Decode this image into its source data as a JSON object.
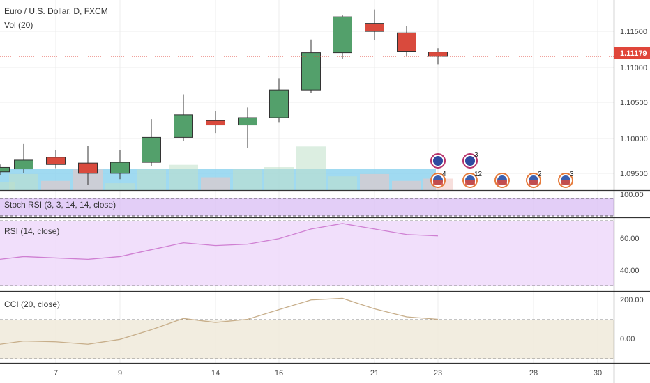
{
  "colors": {
    "up": "#53a06b",
    "down": "#d94a3d",
    "price_line": "#e0463a",
    "grid": "#ececec",
    "volume_bg": "#8fd3ee",
    "stoch_fill": "#dcc2f5",
    "rsi_fill": "#efdcfb",
    "rsi_line": "#cf7fd2",
    "cci_fill": "#f1ebdd",
    "cci_line": "#c7ae8a"
  },
  "header": {
    "symbol_line": "Euro / U.S. Dollar, D, FXCM",
    "volume_label": "Vol (20)"
  },
  "panes": {
    "stoch_label": "Stoch RSI (3, 3, 14, 14, close)",
    "rsi_label": "RSI (14, close)",
    "cci_label": "CCI (20, close)"
  },
  "price_axis": {
    "ticks": [
      "1.11500",
      "1.11000",
      "1.10500",
      "1.10000",
      "1.09500"
    ],
    "current_price": "1.11179"
  },
  "stoch_axis": {
    "tick": "100.00"
  },
  "rsi_axis": {
    "ticks": [
      "60.00",
      "40.00"
    ]
  },
  "cci_axis": {
    "ticks": [
      "200.00",
      "0.00"
    ]
  },
  "time_axis": {
    "ticks": [
      "7",
      "9",
      "14",
      "16",
      "21",
      "23",
      "28",
      "30"
    ]
  },
  "events": {
    "row1": [
      "",
      "3"
    ],
    "row2": [
      "4",
      "12",
      "",
      "2",
      "3"
    ]
  },
  "chart_data": {
    "type": "candlestick",
    "instrument": "Euro / U.S. Dollar, D, FXCM",
    "price_ylim": [
      1.0935,
      1.1195
    ],
    "current_price": 1.11179,
    "candles": [
      {
        "date": "4",
        "open": 1.096,
        "high": 1.097,
        "low": 1.0955,
        "close": 1.0966
      },
      {
        "date": "6",
        "open": 1.0964,
        "high": 1.0998,
        "low": 1.0958,
        "close": 1.0976
      },
      {
        "date": "7",
        "open": 1.098,
        "high": 1.099,
        "low": 1.0965,
        "close": 1.097
      },
      {
        "date": "8",
        "open": 1.0972,
        "high": 1.0996,
        "low": 1.0942,
        "close": 1.0958
      },
      {
        "date": "9",
        "open": 1.0958,
        "high": 1.099,
        "low": 1.095,
        "close": 1.0973
      },
      {
        "date": "12",
        "open": 1.0973,
        "high": 1.1032,
        "low": 1.0968,
        "close": 1.1007
      },
      {
        "date": "13",
        "open": 1.1007,
        "high": 1.1066,
        "low": 1.1002,
        "close": 1.1038
      },
      {
        "date": "14",
        "open": 1.103,
        "high": 1.1043,
        "low": 1.1013,
        "close": 1.1024
      },
      {
        "date": "15",
        "open": 1.1024,
        "high": 1.1048,
        "low": 1.0993,
        "close": 1.1034
      },
      {
        "date": "16",
        "open": 1.1034,
        "high": 1.1088,
        "low": 1.1028,
        "close": 1.1072
      },
      {
        "date": "19",
        "open": 1.1072,
        "high": 1.1141,
        "low": 1.1068,
        "close": 1.1123
      },
      {
        "date": "20",
        "open": 1.1123,
        "high": 1.1175,
        "low": 1.1114,
        "close": 1.1172
      },
      {
        "date": "21",
        "open": 1.1163,
        "high": 1.1182,
        "low": 1.114,
        "close": 1.1152
      },
      {
        "date": "22",
        "open": 1.115,
        "high": 1.1159,
        "low": 1.1118,
        "close": 1.1125
      },
      {
        "date": "23",
        "open": 1.1124,
        "high": 1.1129,
        "low": 1.1107,
        "close": 1.11179
      }
    ],
    "volume_relative": [
      0.18,
      0.35,
      0.2,
      0.45,
      0.15,
      0.45,
      0.55,
      0.28,
      0.45,
      0.5,
      0.95,
      0.3,
      0.35,
      0.2,
      0.25
    ],
    "rsi": {
      "label": "RSI (14, close)",
      "ylim": [
        25,
        72
      ],
      "values": [
        44,
        46,
        45,
        44,
        46,
        51,
        56,
        54,
        55,
        59,
        66,
        70,
        66,
        62,
        61
      ]
    },
    "cci": {
      "label": "CCI (20, close)",
      "ylim": [
        -150,
        240
      ],
      "values": [
        -60,
        -40,
        -45,
        -60,
        -30,
        30,
        100,
        75,
        95,
        155,
        215,
        225,
        160,
        110,
        95
      ]
    }
  }
}
